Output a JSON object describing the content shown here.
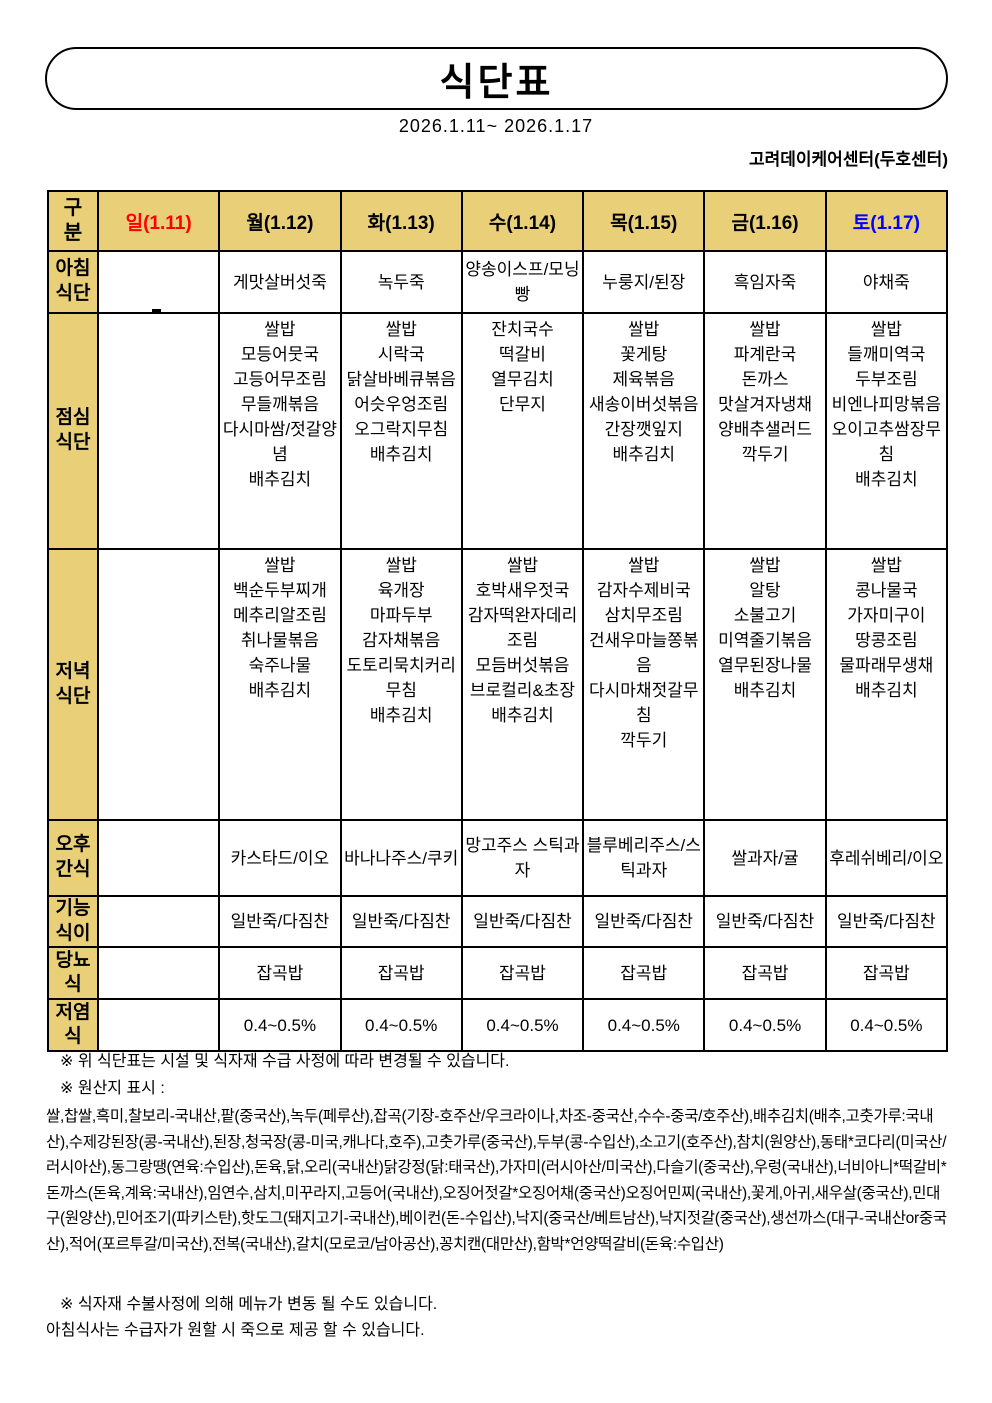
{
  "colors": {
    "header_bg": "#E9CF78",
    "sunday_red": "#FF0000",
    "saturday_blue": "#0000FF",
    "grid_line": "#000000"
  },
  "title": "식단표",
  "date_range": "2026.1.11~ 2026.1.17",
  "center_name": "고려데이케어센터(두호센터)",
  "table": {
    "corner_lines": [
      "구",
      "분"
    ],
    "days": [
      {
        "label": "일(1.11)",
        "color": "#FF0000"
      },
      {
        "label": "월(1.12)",
        "color": "#000000"
      },
      {
        "label": "화(1.13)",
        "color": "#000000"
      },
      {
        "label": "수(1.14)",
        "color": "#000000"
      },
      {
        "label": "목(1.15)",
        "color": "#000000"
      },
      {
        "label": "금(1.16)",
        "color": "#000000"
      },
      {
        "label": "토(1.17)",
        "color": "#0000FF"
      }
    ],
    "rows": [
      {
        "key": "breakfast",
        "label_lines": [
          "아침",
          "식단"
        ],
        "cells": [
          "",
          "게맛살버섯죽",
          "녹두죽",
          "양송이스프/모닝빵",
          "누룽지/된장",
          "흑임자죽",
          "야채죽"
        ]
      },
      {
        "key": "lunch",
        "label_lines": [
          "점심",
          "식단"
        ],
        "cells": [
          [],
          [
            "쌀밥",
            "모등어뭇국",
            "고등어무조림",
            "무들깨볶음",
            "다시마쌈/젓갈양념",
            "배추김치"
          ],
          [
            "쌀밥",
            "시락국",
            "닭살바베큐볶음",
            "어슷우엉조림",
            "오그락지무침",
            "배추김치"
          ],
          [
            "잔치국수",
            "떡갈비",
            "열무김치",
            "단무지"
          ],
          [
            "쌀밥",
            "꽃게탕",
            "제육볶음",
            "새송이버섯볶음",
            "간장깻잎지",
            "배추김치"
          ],
          [
            "쌀밥",
            "파계란국",
            "돈까스",
            "맛살겨자냉채",
            "양배추샐러드",
            "깍두기"
          ],
          [
            "쌀밥",
            "들깨미역국",
            "두부조림",
            "비엔나피망볶음",
            "오이고추쌈장무침",
            "배추김치"
          ]
        ]
      },
      {
        "key": "dinner",
        "label_lines": [
          "저녁",
          "식단"
        ],
        "cells": [
          [],
          [
            "쌀밥",
            "백순두부찌개",
            "메추리알조림",
            "취나물볶음",
            "숙주나물",
            "배추김치"
          ],
          [
            "쌀밥",
            "육개장",
            "마파두부",
            "감자채볶음",
            "도토리묵치커리무침",
            "배추김치"
          ],
          [
            "쌀밥",
            "호박새우젓국",
            "감자떡완자데리조림",
            "모듬버섯볶음",
            "브로컬리&초장",
            "배추김치"
          ],
          [
            "쌀밥",
            "감자수제비국",
            "삼치무조림",
            "건새우마늘쫑볶음",
            "다시마채젓갈무침",
            "깍두기"
          ],
          [
            "쌀밥",
            "알탕",
            "소불고기",
            "미역줄기볶음",
            "열무된장나물",
            "배추김치"
          ],
          [
            "쌀밥",
            "콩나물국",
            "가자미구이",
            "땅콩조림",
            "물파래무생채",
            "배추김치"
          ]
        ]
      },
      {
        "key": "snack",
        "label_lines": [
          "오후",
          "간식"
        ],
        "cells": [
          "",
          "카스타드/이오",
          "바나나주스/쿠키",
          "망고주스 스틱과자",
          "블루베리주스/스틱과자",
          "쌀과자/귤",
          "후레쉬베리/이오"
        ]
      },
      {
        "key": "functional",
        "label_lines": [
          "기능",
          "식이"
        ],
        "cells": [
          "",
          "일반죽/다짐찬",
          "일반죽/다짐찬",
          "일반죽/다짐찬",
          "일반죽/다짐찬",
          "일반죽/다짐찬",
          "일반죽/다짐찬"
        ]
      },
      {
        "key": "diabetic",
        "label_lines": [
          "당뇨",
          "식"
        ],
        "cells": [
          "",
          "잡곡밥",
          "잡곡밥",
          "잡곡밥",
          "잡곡밥",
          "잡곡밥",
          "잡곡밥"
        ]
      },
      {
        "key": "lowsalt",
        "label_lines": [
          "저염",
          "식"
        ],
        "cells": [
          "",
          "0.4~0.5%",
          "0.4~0.5%",
          "0.4~0.5%",
          "0.4~0.5%",
          "0.4~0.5%",
          "0.4~0.5%"
        ]
      }
    ]
  },
  "notes": {
    "change_notice": "※ 위 식단표는 시설 및 식자재 수급 사정에 따라 변경될 수 있습니다.",
    "origin_title": "※ 원산지 표시 :",
    "origin_detail": "쌀,찹쌀,흑미,찰보리-국내산,팥(중국산),녹두(페루산),잡곡(기장-호주산/우크라이나,차조-중국산,수수-중국/호주산),배추김치(배추,고춧가루:국내산),수제강된장(콩-국내산),된장,청국장(콩-미국,캐나다,호주),고춧가루(중국산),두부(콩-수입산),소고기(호주산),참치(원양산),동태*코다리(미국산/러시아산),동그랑땡(연육:수입산),돈육,닭,오리(국내산)닭강정(닭:태국산),가자미(러시아산/미국산),다슬기(중국산),우렁(국내산),너비아니*떡갈비*돈까스(돈육,계육:국내산),임연수,삼치,미꾸라지,고등어(국내산),오징어젓갈*오징어채(중국산)오징어민찌(국내산),꽃게,아귀,새우살(중국산),민대구(원양산),민어조기(파키스탄),핫도그(돼지고기-국내산),베이컨(돈-수입산),낙지(중국산/베트남산),낙지젓갈(중국산),생선까스(대구-국내산or중국산),적어(포르투갈/미국산),전복(국내산),갈치(모로코/남아공산),꽁치캔(대만산),함박*언양떡갈비(돈육:수입산)",
    "supply_notice": "※ 식자재 수불사정에 의해 메뉴가 변동 될 수도 있습니다.",
    "breakfast_notice": "아침식사는 수급자가 원할 시 죽으로 제공 할 수 있습니다."
  }
}
